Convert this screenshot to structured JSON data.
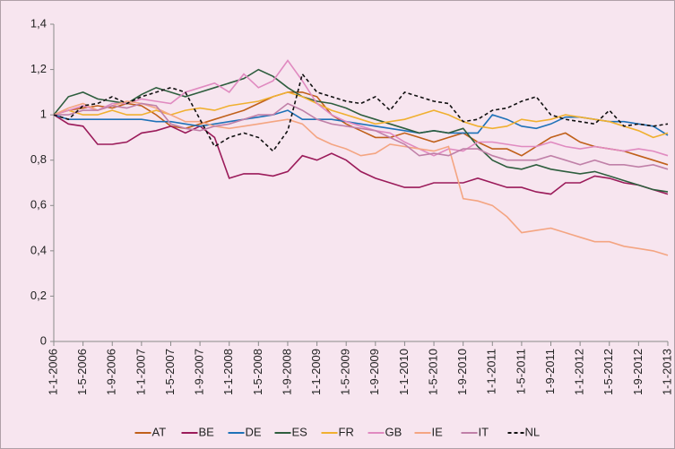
{
  "chart_data": {
    "type": "line",
    "categories": [
      "1-1-2006",
      null,
      "1-5-2006",
      null,
      "1-9-2006",
      null,
      "1-1-2007",
      null,
      "1-5-2007",
      null,
      "1-9-2007",
      null,
      "1-1-2008",
      null,
      "1-5-2008",
      null,
      "1-9-2008",
      null,
      "1-1-2009",
      null,
      "1-5-2009",
      null,
      "1-9-2009",
      null,
      "1-1-2010",
      null,
      "1-5-2010",
      null,
      "1-9-2010",
      null,
      "1-1-2011",
      null,
      "1-5-2011",
      null,
      "1-9-2011",
      null,
      "1-1-2012",
      null,
      "1-5-2012",
      null,
      "1-9-2012",
      null,
      "1-1-2013"
    ],
    "ylim": [
      0,
      1.4
    ],
    "yticks": [
      0,
      {
        "value": 0.2,
        "label": "0,2"
      },
      {
        "value": 0.4,
        "label": "0,4"
      },
      {
        "value": 0.6,
        "label": "0,6"
      },
      {
        "value": 0.8,
        "label": "0,8"
      },
      1,
      {
        "value": 1.2,
        "label": "1,2"
      },
      {
        "value": 1.4,
        "label": "1,4"
      }
    ],
    "grid": false,
    "legend": "bottom",
    "series": [
      {
        "name": "AT",
        "color": "#c0601a",
        "values": [
          1.0,
          1.02,
          1.03,
          1.04,
          1.03,
          1.05,
          1.04,
          1.0,
          0.95,
          0.94,
          0.96,
          0.98,
          1.0,
          1.02,
          1.05,
          1.08,
          1.1,
          1.1,
          1.08,
          1.0,
          0.96,
          0.93,
          0.9,
          0.9,
          0.92,
          0.9,
          0.88,
          0.9,
          0.92,
          0.88,
          0.85,
          0.85,
          0.82,
          0.86,
          0.9,
          0.92,
          0.88,
          0.86,
          0.85,
          0.84,
          0.82,
          0.8,
          0.78
        ]
      },
      {
        "name": "BE",
        "color": "#9b1b5a",
        "values": [
          1.0,
          0.96,
          0.95,
          0.87,
          0.87,
          0.88,
          0.92,
          0.93,
          0.95,
          0.92,
          0.95,
          0.9,
          0.72,
          0.74,
          0.74,
          0.73,
          0.75,
          0.82,
          0.8,
          0.83,
          0.8,
          0.75,
          0.72,
          0.7,
          0.68,
          0.68,
          0.7,
          0.7,
          0.7,
          0.72,
          0.7,
          0.68,
          0.68,
          0.66,
          0.65,
          0.7,
          0.7,
          0.73,
          0.72,
          0.7,
          0.69,
          0.67,
          0.65
        ]
      },
      {
        "name": "DE",
        "color": "#1f72b8",
        "values": [
          1.0,
          0.98,
          0.98,
          0.98,
          0.98,
          0.98,
          0.98,
          0.97,
          0.97,
          0.96,
          0.95,
          0.96,
          0.97,
          0.98,
          0.99,
          1.0,
          1.02,
          0.98,
          0.98,
          0.98,
          0.97,
          0.96,
          0.95,
          0.94,
          0.93,
          0.92,
          0.93,
          0.92,
          0.92,
          0.92,
          1.0,
          0.98,
          0.95,
          0.94,
          0.96,
          0.99,
          0.99,
          0.98,
          0.97,
          0.97,
          0.96,
          0.95,
          0.91
        ]
      },
      {
        "name": "ES",
        "color": "#2e5e3e",
        "values": [
          1.0,
          1.08,
          1.1,
          1.07,
          1.06,
          1.05,
          1.09,
          1.12,
          1.1,
          1.08,
          1.1,
          1.12,
          1.14,
          1.16,
          1.2,
          1.17,
          1.12,
          1.08,
          1.06,
          1.05,
          1.03,
          1.0,
          0.98,
          0.96,
          0.94,
          0.92,
          0.93,
          0.92,
          0.94,
          0.86,
          0.8,
          0.77,
          0.76,
          0.78,
          0.76,
          0.75,
          0.74,
          0.75,
          0.73,
          0.71,
          0.69,
          0.67,
          0.66
        ]
      },
      {
        "name": "FR",
        "color": "#f0b030",
        "values": [
          1.0,
          1.02,
          1.0,
          1.0,
          1.02,
          1.0,
          1.0,
          1.02,
          1.0,
          1.02,
          1.03,
          1.02,
          1.04,
          1.05,
          1.06,
          1.08,
          1.1,
          1.08,
          1.05,
          1.02,
          1.0,
          0.98,
          0.96,
          0.97,
          0.98,
          1.0,
          1.02,
          1.0,
          0.97,
          0.95,
          0.94,
          0.95,
          0.98,
          0.97,
          0.98,
          1.0,
          0.99,
          0.98,
          0.97,
          0.95,
          0.93,
          0.9,
          0.92
        ]
      },
      {
        "name": "GB",
        "color": "#e08ac0",
        "values": [
          1.0,
          1.02,
          1.04,
          1.02,
          1.05,
          1.05,
          1.07,
          1.06,
          1.05,
          1.1,
          1.12,
          1.14,
          1.1,
          1.18,
          1.12,
          1.15,
          1.24,
          1.15,
          1.05,
          1.0,
          0.97,
          0.95,
          0.93,
          0.92,
          0.88,
          0.85,
          0.82,
          0.85,
          0.84,
          0.88,
          0.88,
          0.87,
          0.86,
          0.86,
          0.88,
          0.86,
          0.85,
          0.86,
          0.85,
          0.84,
          0.85,
          0.84,
          0.82
        ]
      },
      {
        "name": "IE",
        "color": "#f4a582",
        "values": [
          1.0,
          1.03,
          1.05,
          1.02,
          1.04,
          1.06,
          1.05,
          1.03,
          1.0,
          0.97,
          0.97,
          0.95,
          0.94,
          0.95,
          0.96,
          0.97,
          0.98,
          0.96,
          0.9,
          0.87,
          0.85,
          0.82,
          0.83,
          0.87,
          0.86,
          0.85,
          0.84,
          0.86,
          0.63,
          0.62,
          0.6,
          0.55,
          0.48,
          0.49,
          0.5,
          0.48,
          0.46,
          0.44,
          0.44,
          0.42,
          0.41,
          0.4,
          0.38
        ]
      },
      {
        "name": "IT",
        "color": "#c080a8",
        "values": [
          1.0,
          1.0,
          1.02,
          1.02,
          1.04,
          1.03,
          1.05,
          1.04,
          0.96,
          0.94,
          0.93,
          0.95,
          0.96,
          0.98,
          1.0,
          1.0,
          1.05,
          1.02,
          0.98,
          0.96,
          0.95,
          0.94,
          0.93,
          0.9,
          0.87,
          0.82,
          0.83,
          0.82,
          0.85,
          0.85,
          0.82,
          0.8,
          0.8,
          0.8,
          0.82,
          0.8,
          0.78,
          0.8,
          0.78,
          0.78,
          0.77,
          0.78,
          0.76
        ]
      },
      {
        "name": "NL",
        "color": "#111111",
        "dashed": true,
        "values": [
          1.0,
          0.98,
          1.04,
          1.05,
          1.08,
          1.05,
          1.08,
          1.1,
          1.12,
          1.1,
          0.98,
          0.86,
          0.9,
          0.92,
          0.9,
          0.84,
          0.93,
          1.18,
          1.1,
          1.08,
          1.06,
          1.05,
          1.08,
          1.02,
          1.1,
          1.08,
          1.06,
          1.05,
          0.97,
          0.98,
          1.02,
          1.03,
          1.06,
          1.08,
          1.0,
          0.98,
          0.97,
          0.96,
          1.02,
          0.95,
          0.96,
          0.95,
          0.96
        ]
      }
    ]
  }
}
